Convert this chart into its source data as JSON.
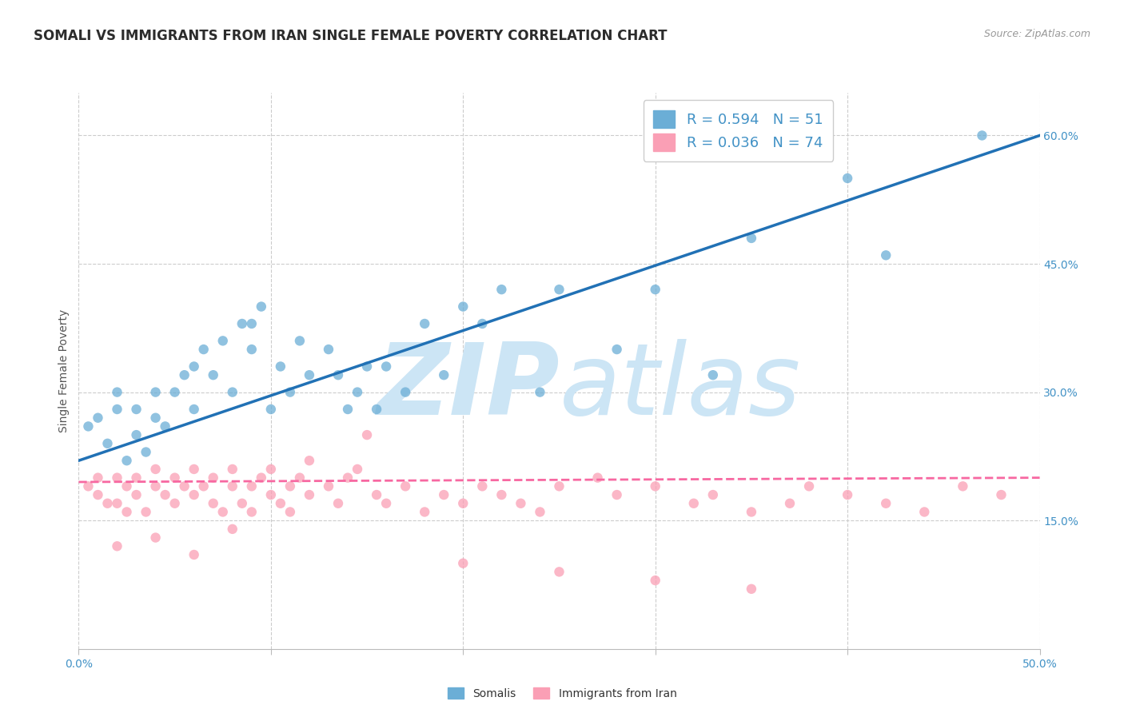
{
  "title": "SOMALI VS IMMIGRANTS FROM IRAN SINGLE FEMALE POVERTY CORRELATION CHART",
  "source": "Source: ZipAtlas.com",
  "ylabel": "Single Female Poverty",
  "xlabel": "",
  "x_min": 0.0,
  "x_max": 0.5,
  "y_min": 0.0,
  "y_max": 0.65,
  "x_ticks": [
    0.0,
    0.1,
    0.2,
    0.3,
    0.4,
    0.5
  ],
  "x_tick_labels": [
    "0.0%",
    "",
    "",
    "",
    "",
    "50.0%"
  ],
  "y_ticks_right": [
    0.15,
    0.3,
    0.45,
    0.6
  ],
  "y_tick_labels_right": [
    "15.0%",
    "30.0%",
    "45.0%",
    "60.0%"
  ],
  "somali_R": 0.594,
  "somali_N": 51,
  "iran_R": 0.036,
  "iran_N": 74,
  "somali_color": "#6baed6",
  "iran_color": "#fa9fb5",
  "somali_line_color": "#2171b5",
  "iran_line_color": "#f768a1",
  "background_color": "#ffffff",
  "grid_color": "#cccccc",
  "legend_R_color": "#4292c6",
  "watermark_color": "#cce5f5",
  "somali_line_y0": 0.22,
  "somali_line_y1": 0.6,
  "iran_line_y0": 0.195,
  "iran_line_y1": 0.2,
  "somali_x": [
    0.005,
    0.01,
    0.015,
    0.02,
    0.02,
    0.025,
    0.03,
    0.03,
    0.035,
    0.04,
    0.04,
    0.045,
    0.05,
    0.055,
    0.06,
    0.06,
    0.065,
    0.07,
    0.075,
    0.08,
    0.085,
    0.09,
    0.09,
    0.095,
    0.1,
    0.105,
    0.11,
    0.115,
    0.12,
    0.13,
    0.135,
    0.14,
    0.145,
    0.15,
    0.155,
    0.16,
    0.17,
    0.18,
    0.19,
    0.2,
    0.21,
    0.22,
    0.24,
    0.25,
    0.28,
    0.3,
    0.33,
    0.35,
    0.4,
    0.42,
    0.47
  ],
  "somali_y": [
    0.26,
    0.27,
    0.24,
    0.28,
    0.3,
    0.22,
    0.25,
    0.28,
    0.23,
    0.27,
    0.3,
    0.26,
    0.3,
    0.32,
    0.28,
    0.33,
    0.35,
    0.32,
    0.36,
    0.3,
    0.38,
    0.35,
    0.38,
    0.4,
    0.28,
    0.33,
    0.3,
    0.36,
    0.32,
    0.35,
    0.32,
    0.28,
    0.3,
    0.33,
    0.28,
    0.33,
    0.3,
    0.38,
    0.32,
    0.4,
    0.38,
    0.42,
    0.3,
    0.42,
    0.35,
    0.42,
    0.32,
    0.48,
    0.55,
    0.46,
    0.6
  ],
  "iran_x": [
    0.005,
    0.01,
    0.01,
    0.015,
    0.02,
    0.02,
    0.025,
    0.025,
    0.03,
    0.03,
    0.035,
    0.04,
    0.04,
    0.045,
    0.05,
    0.05,
    0.055,
    0.06,
    0.06,
    0.065,
    0.07,
    0.07,
    0.075,
    0.08,
    0.08,
    0.085,
    0.09,
    0.09,
    0.095,
    0.1,
    0.1,
    0.105,
    0.11,
    0.11,
    0.115,
    0.12,
    0.12,
    0.13,
    0.135,
    0.14,
    0.145,
    0.15,
    0.155,
    0.16,
    0.17,
    0.18,
    0.19,
    0.2,
    0.21,
    0.22,
    0.23,
    0.24,
    0.25,
    0.27,
    0.28,
    0.3,
    0.32,
    0.33,
    0.35,
    0.37,
    0.38,
    0.4,
    0.42,
    0.44,
    0.46,
    0.48,
    0.25,
    0.3,
    0.35,
    0.2,
    0.02,
    0.04,
    0.06,
    0.08
  ],
  "iran_y": [
    0.19,
    0.2,
    0.18,
    0.17,
    0.2,
    0.17,
    0.19,
    0.16,
    0.18,
    0.2,
    0.16,
    0.19,
    0.21,
    0.18,
    0.2,
    0.17,
    0.19,
    0.18,
    0.21,
    0.19,
    0.17,
    0.2,
    0.16,
    0.19,
    0.21,
    0.17,
    0.19,
    0.16,
    0.2,
    0.18,
    0.21,
    0.17,
    0.19,
    0.16,
    0.2,
    0.18,
    0.22,
    0.19,
    0.17,
    0.2,
    0.21,
    0.25,
    0.18,
    0.17,
    0.19,
    0.16,
    0.18,
    0.17,
    0.19,
    0.18,
    0.17,
    0.16,
    0.19,
    0.2,
    0.18,
    0.19,
    0.17,
    0.18,
    0.16,
    0.17,
    0.19,
    0.18,
    0.17,
    0.16,
    0.19,
    0.18,
    0.09,
    0.08,
    0.07,
    0.1,
    0.12,
    0.13,
    0.11,
    0.14
  ]
}
